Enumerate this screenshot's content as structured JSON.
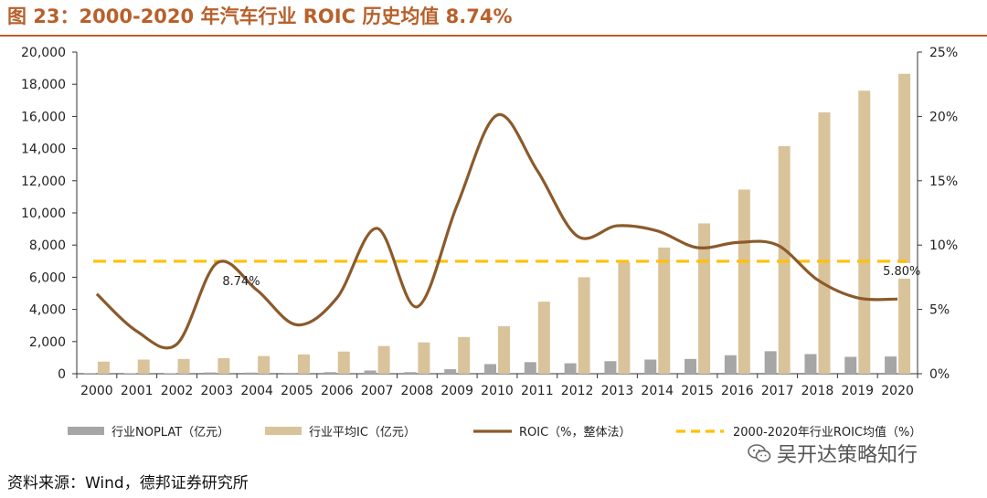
{
  "title": "图 23：2000-2020 年汽车行业 ROIC 历史均值 8.74%",
  "source": "资料来源：Wind，德邦证券研究所",
  "watermark": "吴开达策略知行",
  "colors": {
    "noplat": "#a6a6a6",
    "ic": "#d9c39b",
    "roic": "#8b5a2b",
    "avg": "#ffc000",
    "title": "#b8602b"
  },
  "chart_data": {
    "type": "bar",
    "categories": [
      "2000",
      "2001",
      "2002",
      "2003",
      "2004",
      "2005",
      "2006",
      "2007",
      "2008",
      "2009",
      "2010",
      "2011",
      "2012",
      "2013",
      "2014",
      "2015",
      "2016",
      "2017",
      "2018",
      "2019",
      "2020"
    ],
    "left_axis": {
      "ticks": [
        "0",
        "2,000",
        "4,000",
        "6,000",
        "8,000",
        "10,000",
        "12,000",
        "14,000",
        "16,000",
        "18,000",
        "20,000"
      ],
      "ylim": [
        0,
        20000
      ]
    },
    "right_axis": {
      "ticks": [
        "0%",
        "5%",
        "10%",
        "15%",
        "20%",
        "25%"
      ],
      "ylim": [
        0,
        25
      ]
    },
    "series": [
      {
        "name": "行业NOPLAT（亿元）",
        "kind": "bar",
        "axis": "left",
        "values": [
          20,
          30,
          30,
          80,
          70,
          50,
          100,
          200,
          100,
          280,
          600,
          720,
          650,
          780,
          880,
          920,
          1150,
          1400,
          1220,
          1050,
          1070
        ]
      },
      {
        "name": "行业平均IC（亿元）",
        "kind": "bar",
        "axis": "left",
        "values": [
          750,
          880,
          920,
          970,
          1100,
          1200,
          1380,
          1720,
          1950,
          2280,
          2950,
          4480,
          6000,
          6950,
          7850,
          9350,
          11450,
          14150,
          16250,
          17600,
          18650
        ]
      },
      {
        "name": "ROIC（%，整体法）",
        "kind": "line",
        "axis": "right",
        "values": [
          6.2,
          3.3,
          2.3,
          8.6,
          6.5,
          3.8,
          5.9,
          11.3,
          5.2,
          13.1,
          20.1,
          15.8,
          10.7,
          11.5,
          11.1,
          9.8,
          10.2,
          10.0,
          7.3,
          5.9,
          5.8
        ]
      },
      {
        "name": "2000-2020年行业ROIC均值（%）",
        "kind": "line",
        "axis": "right",
        "values": [
          8.74,
          8.74,
          8.74,
          8.74,
          8.74,
          8.74,
          8.74,
          8.74,
          8.74,
          8.74,
          8.74,
          8.74,
          8.74,
          8.74,
          8.74,
          8.74,
          8.74,
          8.74,
          8.74,
          8.74,
          8.74
        ]
      }
    ],
    "annotations": [
      {
        "text": "8.74%",
        "category": "2003",
        "value": 8.74
      },
      {
        "text": "5.80%",
        "category": "2020",
        "value": 5.8
      }
    ],
    "legend_position": "bottom",
    "grid": false
  }
}
